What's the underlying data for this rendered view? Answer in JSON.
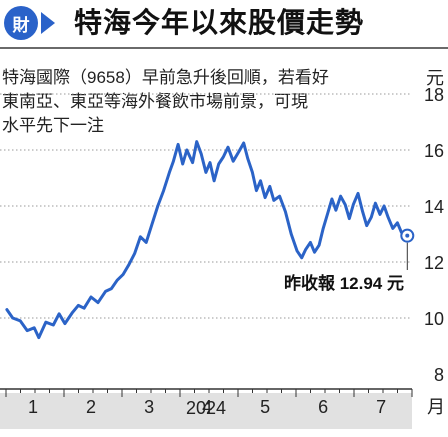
{
  "header": {
    "logo_text": "財",
    "title": "特海今年以來股價走勢"
  },
  "description": {
    "lines": [
      "特海國際（9658）早前急升後回順，若看好",
      "東南亞、東亞等海外餐飲市場前景，可現",
      "水平先下一注"
    ]
  },
  "chart_data": {
    "type": "line",
    "year_label": "2024",
    "x_ticks": [
      "1",
      "2",
      "3",
      "4",
      "5",
      "6",
      "7"
    ],
    "x_unit": "月",
    "y_ticks": [
      "8",
      "10",
      "12",
      "14",
      "16",
      "18"
    ],
    "y_unit": "元",
    "ylim": [
      8,
      18
    ],
    "xlim": [
      0.5,
      7.6
    ],
    "annotation": "昨收報 12.94 元",
    "last_point": {
      "x": 7.45,
      "y": 12.94
    },
    "series": [
      {
        "color": "#2b63c7",
        "points": [
          [
            0.55,
            10.3
          ],
          [
            0.65,
            10.0
          ],
          [
            0.78,
            9.9
          ],
          [
            0.9,
            9.55
          ],
          [
            1.02,
            9.65
          ],
          [
            1.1,
            9.3
          ],
          [
            1.22,
            9.85
          ],
          [
            1.35,
            9.75
          ],
          [
            1.45,
            10.15
          ],
          [
            1.55,
            9.8
          ],
          [
            1.68,
            10.2
          ],
          [
            1.78,
            10.45
          ],
          [
            1.88,
            10.35
          ],
          [
            2.0,
            10.75
          ],
          [
            2.12,
            10.55
          ],
          [
            2.25,
            10.95
          ],
          [
            2.35,
            11.05
          ],
          [
            2.45,
            11.35
          ],
          [
            2.55,
            11.55
          ],
          [
            2.65,
            11.9
          ],
          [
            2.75,
            12.3
          ],
          [
            2.85,
            12.9
          ],
          [
            2.95,
            12.7
          ],
          [
            3.05,
            13.35
          ],
          [
            3.15,
            14.0
          ],
          [
            3.25,
            14.55
          ],
          [
            3.35,
            15.2
          ],
          [
            3.42,
            15.6
          ],
          [
            3.5,
            16.2
          ],
          [
            3.58,
            15.5
          ],
          [
            3.65,
            16.0
          ],
          [
            3.75,
            15.55
          ],
          [
            3.82,
            16.3
          ],
          [
            3.9,
            15.85
          ],
          [
            3.98,
            15.2
          ],
          [
            4.05,
            15.55
          ],
          [
            4.12,
            14.9
          ],
          [
            4.2,
            15.5
          ],
          [
            4.28,
            15.75
          ],
          [
            4.36,
            16.1
          ],
          [
            4.45,
            15.6
          ],
          [
            4.55,
            15.95
          ],
          [
            4.63,
            16.25
          ],
          [
            4.7,
            15.7
          ],
          [
            4.78,
            15.2
          ],
          [
            4.85,
            14.55
          ],
          [
            4.92,
            14.9
          ],
          [
            5.0,
            14.3
          ],
          [
            5.08,
            14.7
          ],
          [
            5.15,
            14.2
          ],
          [
            5.25,
            14.35
          ],
          [
            5.35,
            13.8
          ],
          [
            5.45,
            13.0
          ],
          [
            5.55,
            12.4
          ],
          [
            5.63,
            12.15
          ],
          [
            5.7,
            12.45
          ],
          [
            5.78,
            12.7
          ],
          [
            5.85,
            12.35
          ],
          [
            5.93,
            12.6
          ],
          [
            6.0,
            13.2
          ],
          [
            6.08,
            13.75
          ],
          [
            6.15,
            14.25
          ],
          [
            6.22,
            13.85
          ],
          [
            6.3,
            14.35
          ],
          [
            6.38,
            14.05
          ],
          [
            6.45,
            13.55
          ],
          [
            6.52,
            14.05
          ],
          [
            6.6,
            14.45
          ],
          [
            6.68,
            13.8
          ],
          [
            6.75,
            13.3
          ],
          [
            6.83,
            13.6
          ],
          [
            6.9,
            14.1
          ],
          [
            6.98,
            13.7
          ],
          [
            7.05,
            14.0
          ],
          [
            7.12,
            13.6
          ],
          [
            7.2,
            13.2
          ],
          [
            7.28,
            13.4
          ],
          [
            7.35,
            13.05
          ],
          [
            7.45,
            12.94
          ]
        ]
      }
    ]
  }
}
